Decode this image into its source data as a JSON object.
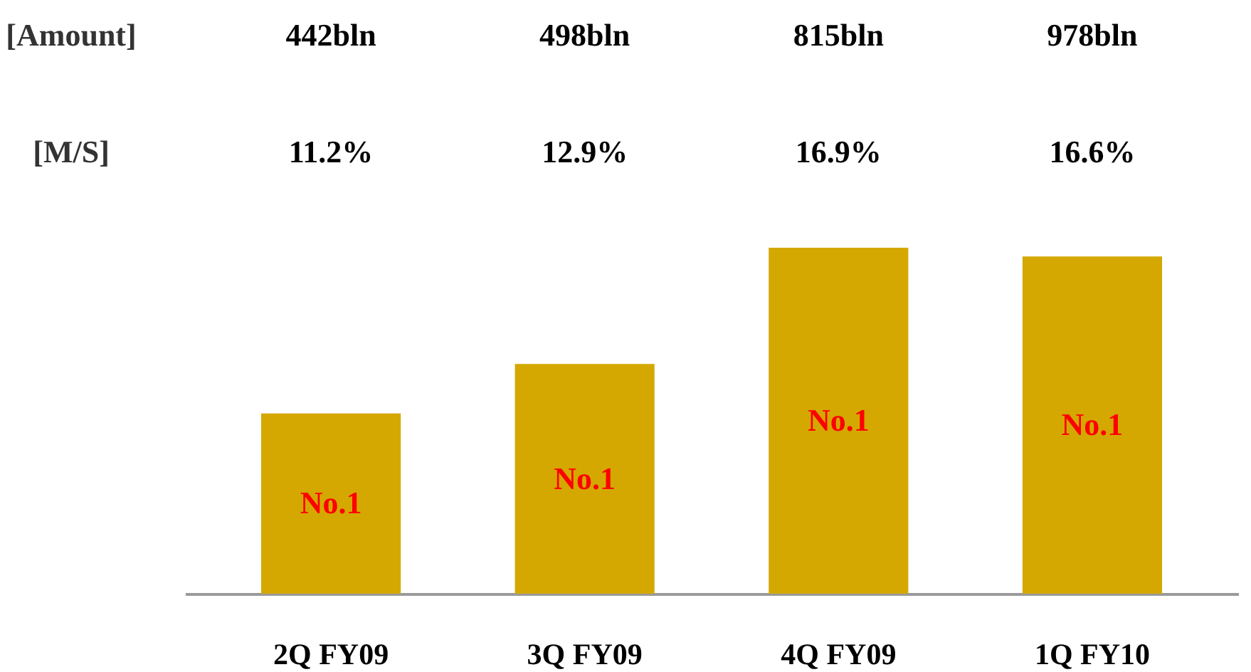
{
  "chart_data": {
    "type": "bar",
    "categories": [
      "2Q FY09",
      "3Q FY09",
      "4Q FY09",
      "1Q FY10"
    ],
    "values": [
      11.2,
      12.9,
      16.9,
      16.6
    ],
    "ylim": [
      5,
      16.9
    ],
    "color": "#d4a800",
    "value_labels": [
      "11.2%",
      "12.9%",
      "16.9%",
      "16.6%"
    ],
    "annotations": [
      "[Amount]",
      "[M/S]",
      "442bln",
      "498bln",
      "815bln",
      "978bln",
      "No.1",
      "No.1",
      "No.1",
      "No.1"
    ]
  }
}
